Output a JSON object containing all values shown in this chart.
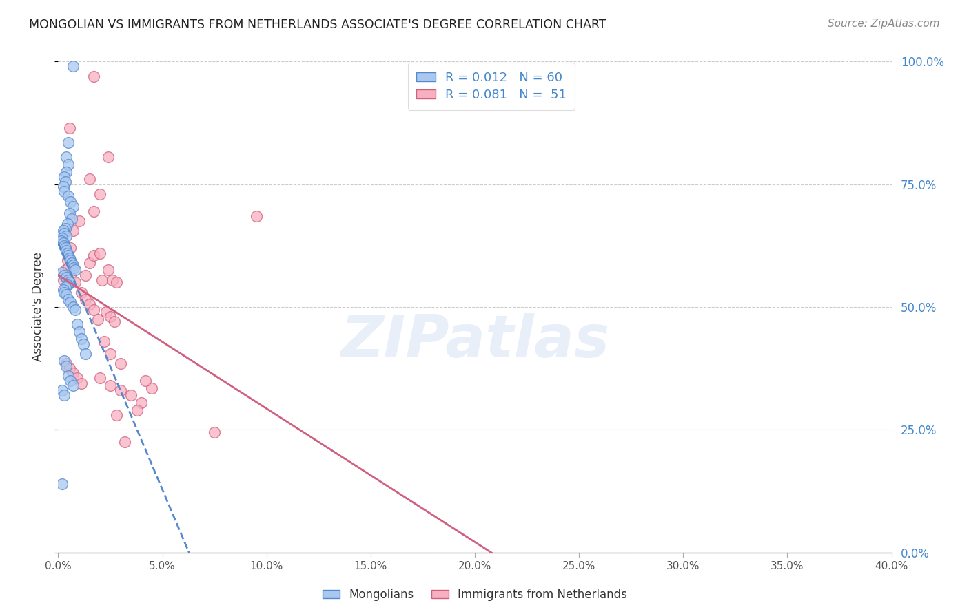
{
  "title": "MONGOLIAN VS IMMIGRANTS FROM NETHERLANDS ASSOCIATE'S DEGREE CORRELATION CHART",
  "source": "Source: ZipAtlas.com",
  "ylabel": "Associate's Degree",
  "xlim": [
    0.0,
    40.0
  ],
  "ylim": [
    0.0,
    100.0
  ],
  "yticks": [
    0.0,
    25.0,
    50.0,
    75.0,
    100.0
  ],
  "xticks": [
    0.0,
    5.0,
    10.0,
    15.0,
    20.0,
    25.0,
    30.0,
    35.0,
    40.0
  ],
  "r1": "0.012",
  "n1": "60",
  "r2": "0.081",
  "n2": "51",
  "color_blue_fill": "#A8C8F0",
  "color_blue_edge": "#5588CC",
  "color_pink_fill": "#F8B0C0",
  "color_pink_edge": "#D06080",
  "color_text_blue": "#4488CC",
  "watermark": "ZIPatlas",
  "series1_label": "Mongolians",
  "series2_label": "Immigrants from Netherlands",
  "mongolian_x": [
    0.7,
    0.5,
    0.4,
    0.5,
    0.4,
    0.3,
    0.35,
    0.25,
    0.3,
    0.5,
    0.6,
    0.7,
    0.55,
    0.65,
    0.45,
    0.35,
    0.25,
    0.3,
    0.4,
    0.2,
    0.15,
    0.25,
    0.3,
    0.35,
    0.4,
    0.45,
    0.5,
    0.55,
    0.6,
    0.65,
    0.7,
    0.75,
    0.8,
    0.2,
    0.3,
    0.4,
    0.5,
    0.55,
    0.45,
    0.35,
    0.25,
    0.3,
    0.4,
    0.5,
    0.6,
    0.7,
    0.8,
    0.9,
    1.0,
    1.1,
    1.2,
    1.3,
    0.3,
    0.4,
    0.5,
    0.6,
    0.7,
    0.2,
    0.3,
    0.2
  ],
  "mongolian_y": [
    99.0,
    83.5,
    80.5,
    79.0,
    77.5,
    76.5,
    75.5,
    74.5,
    73.5,
    72.5,
    71.5,
    70.5,
    69.0,
    68.0,
    67.0,
    66.0,
    65.5,
    65.0,
    64.5,
    64.0,
    63.5,
    63.0,
    62.5,
    62.0,
    61.5,
    61.0,
    60.5,
    60.0,
    59.5,
    59.0,
    58.5,
    58.0,
    57.5,
    57.0,
    56.5,
    56.0,
    55.5,
    55.0,
    54.5,
    54.0,
    53.5,
    53.0,
    52.5,
    51.5,
    51.0,
    50.0,
    49.5,
    46.5,
    45.0,
    43.5,
    42.5,
    40.5,
    39.0,
    38.0,
    36.0,
    35.0,
    34.0,
    33.0,
    32.0,
    14.0
  ],
  "netherlands_x": [
    1.7,
    0.55,
    2.4,
    1.5,
    2.0,
    1.7,
    1.0,
    0.7,
    0.6,
    0.45,
    0.35,
    0.25,
    0.5,
    0.6,
    0.8,
    1.1,
    1.3,
    1.5,
    1.7,
    1.9,
    2.1,
    2.3,
    2.5,
    2.7,
    2.4,
    2.6,
    2.8,
    0.4,
    0.55,
    0.7,
    0.9,
    1.1,
    1.3,
    1.5,
    1.7,
    2.0,
    2.2,
    2.5,
    2.8,
    3.0,
    9.5,
    4.0,
    3.5,
    3.0,
    2.5,
    2.0,
    4.5,
    4.2,
    3.8,
    3.2,
    7.5
  ],
  "netherlands_y": [
    97.0,
    86.5,
    80.5,
    76.0,
    73.0,
    69.5,
    67.5,
    65.5,
    62.0,
    59.5,
    57.5,
    55.5,
    58.0,
    56.5,
    55.0,
    53.0,
    51.5,
    50.5,
    49.5,
    47.5,
    55.5,
    49.0,
    48.0,
    47.0,
    57.5,
    55.5,
    55.0,
    38.5,
    37.5,
    36.5,
    35.5,
    34.5,
    56.5,
    59.0,
    60.5,
    61.0,
    43.0,
    40.5,
    28.0,
    38.5,
    68.5,
    30.5,
    32.0,
    33.0,
    34.0,
    35.5,
    33.5,
    35.0,
    29.0,
    22.5,
    24.5
  ]
}
